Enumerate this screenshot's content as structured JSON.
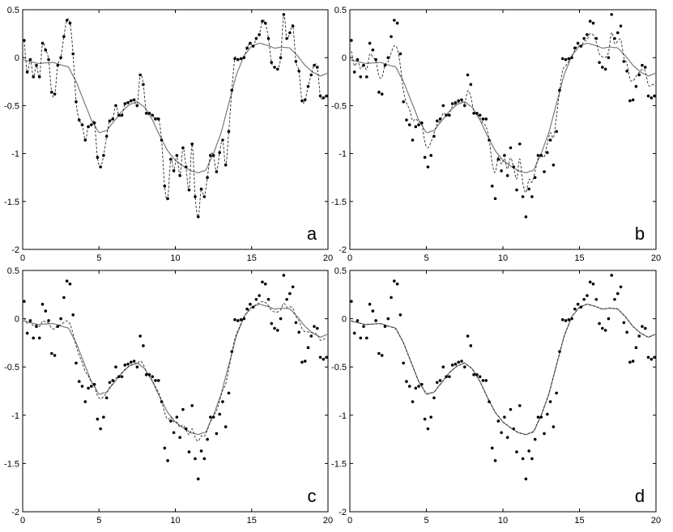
{
  "chart_data": [
    {
      "type": "scatter",
      "panel_label": "a",
      "xlim": [
        0,
        20
      ],
      "ylim": [
        -2,
        0.5
      ],
      "x_ticks": [
        0,
        5,
        10,
        15,
        20
      ],
      "y_ticks": [
        0.5,
        0,
        -0.5,
        -1,
        -1.5,
        -2
      ],
      "series": [
        {
          "role": "noisy samples",
          "style": "dots"
        },
        {
          "role": "true signal",
          "style": "solid gray line"
        },
        {
          "role": "estimate",
          "style": "dashed line",
          "follows": "samples"
        }
      ]
    },
    {
      "type": "scatter",
      "panel_label": "b",
      "xlim": [
        0,
        20
      ],
      "ylim": [
        -2,
        0.5
      ],
      "x_ticks": [
        0,
        5,
        10,
        15,
        20
      ],
      "y_ticks": [
        0.5,
        0,
        -0.5,
        -1,
        -1.5,
        -2
      ],
      "series": [
        {
          "role": "noisy samples",
          "style": "dots"
        },
        {
          "role": "true signal",
          "style": "solid gray line"
        },
        {
          "role": "estimate",
          "style": "dashed line",
          "follows": "moderately smoothed"
        }
      ]
    },
    {
      "type": "scatter",
      "panel_label": "c",
      "xlim": [
        0,
        20
      ],
      "ylim": [
        -2,
        0.5
      ],
      "x_ticks": [
        0,
        5,
        10,
        15,
        20
      ],
      "y_ticks": [
        0.5,
        0,
        -0.5,
        -1,
        -1.5,
        -2
      ],
      "series": [
        {
          "role": "noisy samples",
          "style": "dots"
        },
        {
          "role": "true signal",
          "style": "solid gray line"
        },
        {
          "role": "estimate",
          "style": "dashed line",
          "follows": "near truth"
        }
      ]
    },
    {
      "type": "scatter",
      "panel_label": "d",
      "xlim": [
        0,
        20
      ],
      "ylim": [
        -2,
        0.5
      ],
      "x_ticks": [
        0,
        5,
        10,
        15,
        20
      ],
      "y_ticks": [
        0.5,
        0,
        -0.5,
        -1,
        -1.5,
        -2
      ],
      "series": [
        {
          "role": "noisy samples",
          "style": "dots"
        },
        {
          "role": "true signal",
          "style": "solid gray line"
        },
        {
          "role": "estimate",
          "style": "dashed line",
          "follows": "truth"
        }
      ]
    }
  ],
  "true_signal": {
    "x": [
      0,
      1,
      2,
      3,
      3.5,
      4,
      4.5,
      5,
      5.5,
      6,
      6.5,
      7,
      7.5,
      8,
      8.5,
      9,
      9.5,
      10,
      10.5,
      11,
      11.5,
      12,
      12.5,
      13,
      13.5,
      14,
      14.5,
      15,
      15.5,
      16,
      16.5,
      17,
      17.5,
      18,
      18.5,
      19,
      19.5,
      20
    ],
    "y": [
      -0.02,
      -0.06,
      -0.05,
      -0.1,
      -0.25,
      -0.45,
      -0.65,
      -0.78,
      -0.76,
      -0.66,
      -0.56,
      -0.49,
      -0.46,
      -0.52,
      -0.65,
      -0.82,
      -0.97,
      -1.07,
      -1.13,
      -1.18,
      -1.2,
      -1.17,
      -1.0,
      -0.78,
      -0.48,
      -0.18,
      0.02,
      0.12,
      0.15,
      0.13,
      0.1,
      0.11,
      0.1,
      0.02,
      -0.08,
      -0.15,
      -0.19,
      -0.16
    ]
  },
  "samples": {
    "x": [
      0.1,
      0.3,
      0.5,
      0.7,
      0.9,
      1.1,
      1.3,
      1.5,
      1.7,
      1.9,
      2.1,
      2.3,
      2.5,
      2.7,
      2.9,
      3.1,
      3.3,
      3.5,
      3.7,
      3.9,
      4.1,
      4.3,
      4.5,
      4.7,
      4.9,
      5.1,
      5.3,
      5.5,
      5.7,
      5.9,
      6.1,
      6.3,
      6.5,
      6.7,
      6.9,
      7.1,
      7.3,
      7.5,
      7.7,
      7.9,
      8.1,
      8.3,
      8.5,
      8.7,
      8.9,
      9.1,
      9.3,
      9.5,
      9.7,
      9.9,
      10.1,
      10.3,
      10.5,
      10.7,
      10.9,
      11.1,
      11.3,
      11.5,
      11.7,
      11.9,
      12.1,
      12.3,
      12.5,
      12.7,
      12.9,
      13.1,
      13.3,
      13.5,
      13.7,
      13.9,
      14.1,
      14.3,
      14.5,
      14.7,
      14.9,
      15.1,
      15.3,
      15.5,
      15.7,
      15.9,
      16.1,
      16.3,
      16.5,
      16.7,
      16.9,
      17.1,
      17.3,
      17.5,
      17.7,
      17.9,
      18.1,
      18.3,
      18.5,
      18.7,
      18.9,
      19.1,
      19.3,
      19.5,
      19.7,
      19.9
    ],
    "y": [
      0.18,
      -0.15,
      -0.02,
      -0.2,
      -0.08,
      -0.2,
      0.15,
      0.08,
      -0.02,
      -0.36,
      -0.38,
      -0.08,
      0.0,
      0.22,
      0.39,
      0.36,
      0.04,
      -0.46,
      -0.65,
      -0.7,
      -0.86,
      -0.72,
      -0.7,
      -0.68,
      -1.04,
      -1.14,
      -1.02,
      -0.82,
      -0.66,
      -0.64,
      -0.5,
      -0.6,
      -0.6,
      -0.48,
      -0.47,
      -0.45,
      -0.44,
      -0.5,
      -0.18,
      -0.28,
      -0.58,
      -0.58,
      -0.6,
      -0.64,
      -0.64,
      -0.86,
      -1.34,
      -1.47,
      -1.06,
      -1.18,
      -1.02,
      -1.23,
      -0.94,
      -1.14,
      -1.38,
      -0.9,
      -1.45,
      -1.66,
      -1.37,
      -1.45,
      -1.25,
      -1.02,
      -1.02,
      -1.19,
      -0.99,
      -0.86,
      -1.12,
      -0.77,
      -0.34,
      -0.01,
      -0.02,
      -0.01,
      0.0,
      0.1,
      0.15,
      0.12,
      0.2,
      0.24,
      0.38,
      0.36,
      0.2,
      -0.05,
      -0.1,
      -0.12,
      0.0,
      0.45,
      0.2,
      0.26,
      0.33,
      -0.04,
      -0.14,
      -0.45,
      -0.44,
      -0.3,
      -0.18,
      -0.08,
      -0.1,
      -0.4,
      -0.42,
      -0.4
    ]
  }
}
